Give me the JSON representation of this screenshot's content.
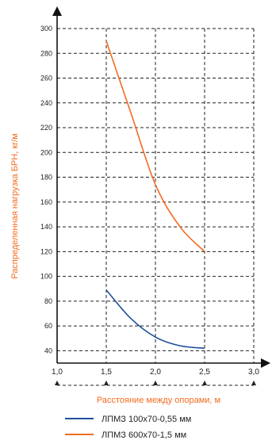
{
  "chart_data": {
    "type": "line",
    "xlabel": "Расстояние между опорами, м",
    "ylabel": "Распределенная нагрузка БРН, кг/м",
    "xlim": [
      1.0,
      3.0
    ],
    "ylim": [
      30,
      300
    ],
    "x_ticks": [
      "1,0",
      "1,5",
      "2,0",
      "2,5",
      "3,0"
    ],
    "y_ticks": [
      40,
      60,
      80,
      100,
      120,
      140,
      160,
      180,
      200,
      220,
      240,
      260,
      280,
      300
    ],
    "grid": "dashed",
    "legend_position": "bottom",
    "series": [
      {
        "name": "ЛПМЗ 100х70-0,55 мм",
        "color": "#1f4e9c",
        "x": [
          1.5,
          1.75,
          2.0,
          2.25,
          2.5
        ],
        "y": [
          89,
          66,
          51,
          44,
          42
        ]
      },
      {
        "name": "ЛПМЗ 600х70-1,5 мм",
        "color": "#f26b21",
        "x": [
          1.5,
          1.75,
          2.0,
          2.25,
          2.5
        ],
        "y": [
          290,
          232,
          174,
          140,
          120
        ]
      }
    ]
  }
}
